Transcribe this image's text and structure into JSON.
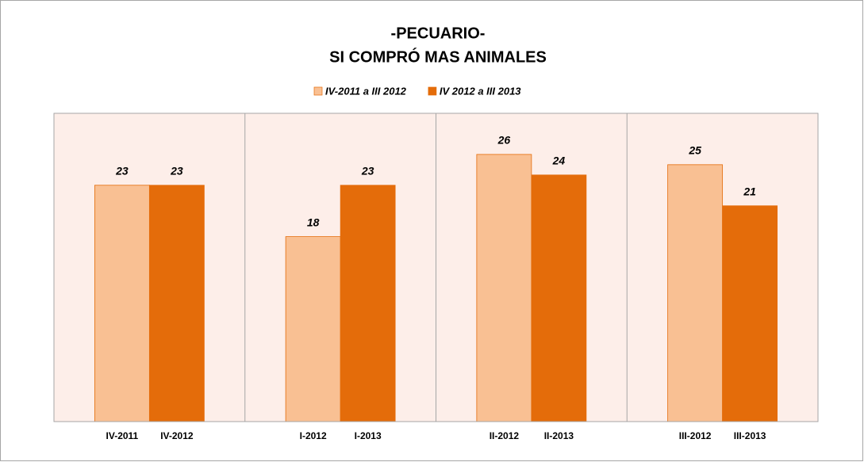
{
  "chart_data": {
    "type": "bar",
    "title": "-PECUARIO-",
    "subtitle": "SI COMPRÓ MAS ANIMALES",
    "categories": [
      null,
      null,
      null,
      null
    ],
    "series": [
      {
        "name": "IV-2011 a III 2012",
        "color": "#f9c093",
        "labels": [
          "IV-2011",
          "I-2012",
          "II-2012",
          "III-2012"
        ],
        "values": [
          23,
          18,
          26,
          25
        ]
      },
      {
        "name": "IV 2012 a III 2013",
        "color": "#e46c0a",
        "labels": [
          "IV-2012",
          "I-2013",
          "II-2013",
          "III-2013"
        ],
        "values": [
          23,
          23,
          24,
          21
        ]
      }
    ],
    "ylim": [
      0,
      30
    ],
    "legend": "top"
  }
}
